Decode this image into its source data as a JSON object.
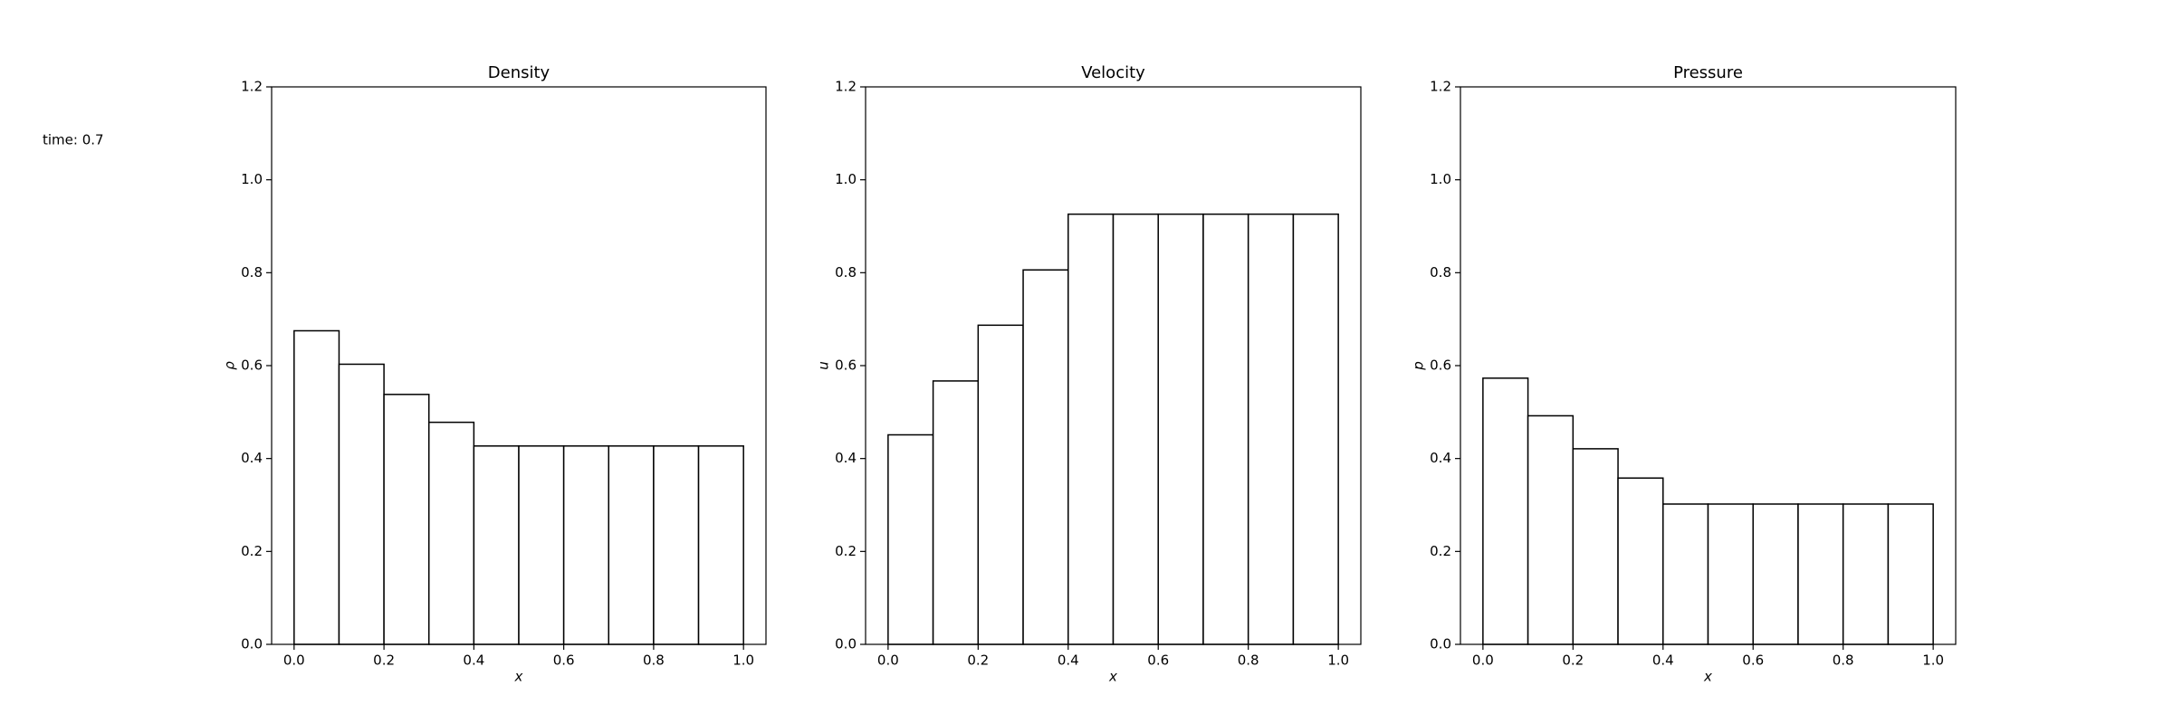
{
  "figure_text": "time: 0.7",
  "chart_data": [
    {
      "type": "histogram",
      "title": "Density",
      "xlabel": "x",
      "ylabel": "ρ",
      "color": "#ffffff",
      "edgecolor": "#000000",
      "bins": [
        0,
        0.1,
        0.2,
        0.3,
        0.4,
        0.5,
        0.6,
        0.7,
        0.8,
        0.9,
        1.0
      ],
      "values": [
        0.675,
        0.603,
        0.538,
        0.478,
        0.427,
        0.427,
        0.427,
        0.427,
        0.427,
        0.427
      ],
      "xlim": [
        -0.05,
        1.05
      ],
      "xticks": [
        {
          "value": 0,
          "label": "0.0"
        },
        0.2,
        0.4,
        0.6,
        0.8,
        {
          "value": 1,
          "label": "1.0"
        }
      ],
      "ylim": [
        0,
        1.2
      ],
      "yticks": [
        {
          "value": 0,
          "label": "0.0"
        },
        0.2,
        0.4,
        0.6,
        0.8,
        {
          "value": 1,
          "label": "1.0"
        },
        1.2
      ]
    },
    {
      "type": "histogram",
      "title": "Velocity",
      "xlabel": "x",
      "ylabel": "u",
      "color": "#ffffff",
      "edgecolor": "#000000",
      "bins": [
        0,
        0.1,
        0.2,
        0.3,
        0.4,
        0.5,
        0.6,
        0.7,
        0.8,
        0.9,
        1.0
      ],
      "values": [
        0.451,
        0.567,
        0.687,
        0.806,
        0.926,
        0.926,
        0.926,
        0.926,
        0.926,
        0.926
      ],
      "xlim": [
        -0.05,
        1.05
      ],
      "xticks": [
        {
          "value": 0,
          "label": "0.0"
        },
        0.2,
        0.4,
        0.6,
        0.8,
        {
          "value": 1,
          "label": "1.0"
        }
      ],
      "ylim": [
        0,
        1.2
      ],
      "yticks": [
        {
          "value": 0,
          "label": "0.0"
        },
        0.2,
        0.4,
        0.6,
        0.8,
        {
          "value": 1,
          "label": "1.0"
        },
        1.2
      ]
    },
    {
      "type": "histogram",
      "title": "Pressure",
      "xlabel": "x",
      "ylabel": "p",
      "color": "#ffffff",
      "edgecolor": "#000000",
      "bins": [
        0,
        0.1,
        0.2,
        0.3,
        0.4,
        0.5,
        0.6,
        0.7,
        0.8,
        0.9,
        1.0
      ],
      "values": [
        0.573,
        0.492,
        0.421,
        0.358,
        0.302,
        0.302,
        0.302,
        0.302,
        0.302,
        0.302
      ],
      "xlim": [
        -0.05,
        1.05
      ],
      "xticks": [
        {
          "value": 0,
          "label": "0.0"
        },
        0.2,
        0.4,
        0.6,
        0.8,
        {
          "value": 1,
          "label": "1.0"
        }
      ],
      "ylim": [
        0,
        1.2
      ],
      "yticks": [
        {
          "value": 0,
          "label": "0.0"
        },
        0.2,
        0.4,
        0.6,
        0.8,
        {
          "value": 1,
          "label": "1.0"
        },
        1.2
      ]
    }
  ]
}
